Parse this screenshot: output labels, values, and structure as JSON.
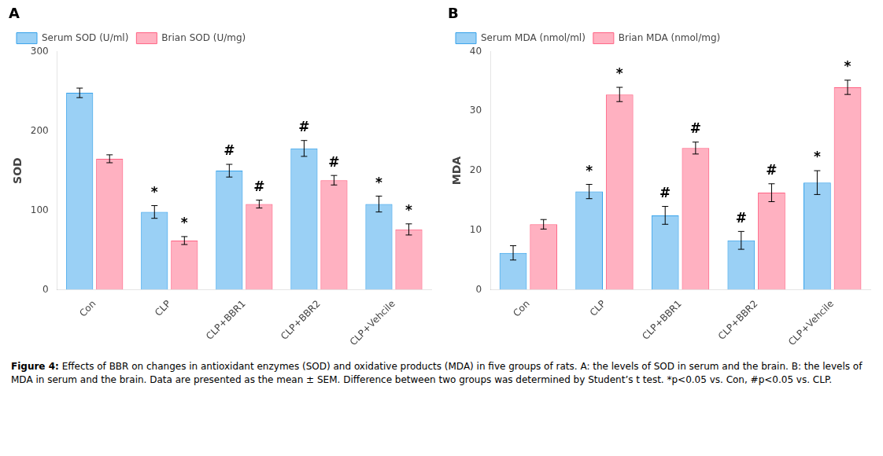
{
  "chart_data": [
    {
      "type": "bar",
      "title": "A",
      "ylabel": "SOD",
      "categories": [
        "Con",
        "CLP",
        "CLP+BBR1",
        "CLP+BBR2",
        "CLP+Vehcile"
      ],
      "series": [
        {
          "name": "Serum SOD (U/ml)",
          "values": [
            248,
            98,
            150,
            178,
            108
          ],
          "errors": [
            6,
            8,
            8,
            10,
            10
          ],
          "annotations": [
            null,
            "*",
            "#",
            "#",
            "*"
          ]
        },
        {
          "name": "Brian SOD (U/mg)",
          "values": [
            165,
            62,
            108,
            138,
            76
          ],
          "errors": [
            5,
            5,
            5,
            6,
            7
          ],
          "annotations": [
            null,
            "*",
            "#",
            "#",
            "*"
          ]
        }
      ],
      "ylim": [
        0,
        300
      ],
      "yticks": [
        0,
        100,
        200,
        300
      ],
      "grid": false,
      "legend": "upper left"
    },
    {
      "type": "bar",
      "title": "B",
      "ylabel": "MDA",
      "categories": [
        "Con",
        "CLP",
        "CLP+BBR1",
        "CLP+BBR2",
        "CLP+Vehcile"
      ],
      "series": [
        {
          "name": "Serum MDA (nmol/ml)",
          "values": [
            6.2,
            16.5,
            12.5,
            8.3,
            18.0
          ],
          "errors": [
            1.2,
            1.2,
            1.5,
            1.5,
            2.0
          ],
          "annotations": [
            null,
            "*",
            "#",
            "#",
            "*"
          ]
        },
        {
          "name": "Brian MDA (nmol/mg)",
          "values": [
            11.0,
            32.8,
            23.8,
            16.3,
            34.0
          ],
          "errors": [
            0.8,
            1.2,
            1.0,
            1.5,
            1.2
          ],
          "annotations": [
            null,
            "*",
            "#",
            "#",
            "*"
          ]
        }
      ],
      "ylim": [
        0,
        40
      ],
      "yticks": [
        0,
        10,
        20,
        30,
        40
      ],
      "grid": false,
      "legend": "upper left"
    }
  ],
  "caption_label": "Figure 4:",
  "caption": "Effects of BBR on changes in antioxidant enzymes (SOD) and oxidative products (MDA) in five groups of rats. A: the levels of SOD in serum and the brain. B: the levels of MDA in serum and the brain. Data are presented as the mean ± SEM. Difference between two groups was determined by Student’s t test. *p<0.05 vs. Con, #p<0.05 vs. CLP."
}
